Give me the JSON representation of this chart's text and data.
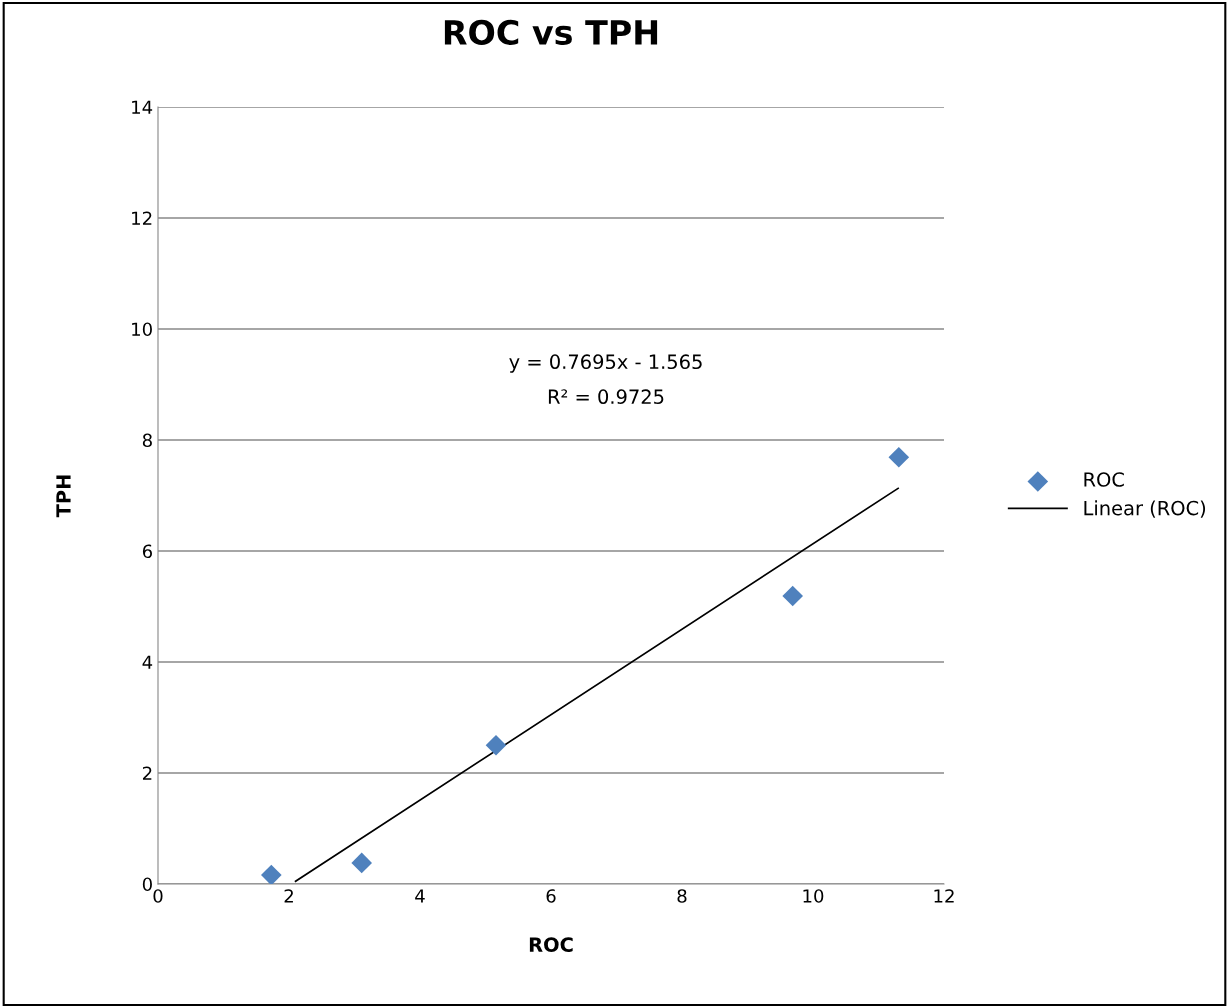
{
  "chart_data": {
    "type": "scatter",
    "title": "ROC vs TPH",
    "xlabel": "ROC",
    "ylabel": "TPH",
    "series": [
      {
        "name": "ROC",
        "color": "#4f81bd",
        "marker": "diamond",
        "x": [
          1.73,
          3.11,
          5.16,
          9.69,
          11.31
        ],
        "values": [
          0.16,
          0.38,
          2.5,
          5.19,
          7.69
        ]
      },
      {
        "name": "Linear (ROC)",
        "type": "line",
        "color": "#000000",
        "marker": "none",
        "line_style": "solid",
        "x": [
          2.1,
          11.3
        ],
        "values": [
          0.05,
          7.13
        ]
      }
    ],
    "annotations": [
      "y = 0.7695x - 1.565",
      "R² = 0.9725"
    ],
    "xlim": [
      0,
      12
    ],
    "xticks": [
      0,
      2,
      4,
      6,
      8,
      10,
      12
    ],
    "ylim": [
      0,
      14
    ],
    "yticks": [
      0,
      2,
      4,
      6,
      8,
      10,
      12,
      14
    ],
    "grid": "y",
    "legend": "right"
  }
}
